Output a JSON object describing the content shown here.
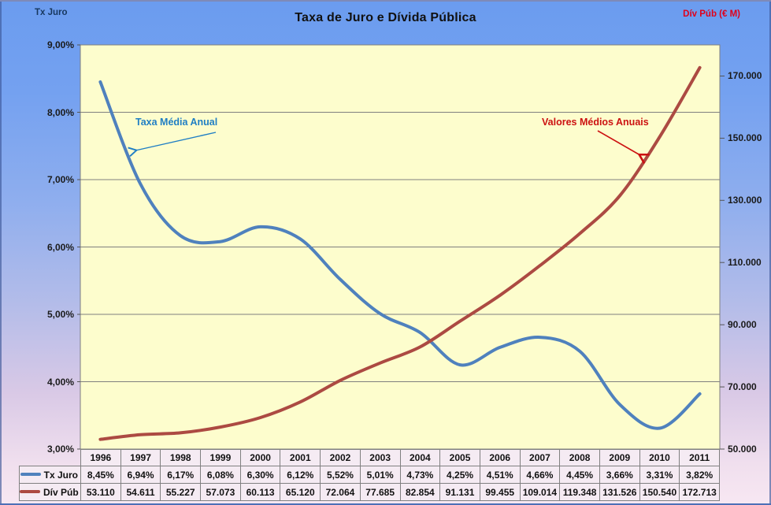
{
  "title": "Taxa de Juro e Dívida Pública",
  "left_axis": {
    "title": "Tx Juro",
    "title_color": "#17375E",
    "tick_labels": [
      "9,00%",
      "8,00%",
      "7,00%",
      "6,00%",
      "5,00%",
      "4,00%",
      "3,00%"
    ],
    "tick_values": [
      9,
      8,
      7,
      6,
      5,
      4,
      3
    ]
  },
  "right_axis": {
    "title": "Dív Púb (€ M)",
    "title_color": "#E0001A",
    "tick_labels": [
      "170.000",
      "150.000",
      "130.000",
      "110.000",
      "90.000",
      "70.000",
      "50.000"
    ],
    "tick_values": [
      170000,
      150000,
      130000,
      110000,
      90000,
      70000,
      50000
    ]
  },
  "annotations": {
    "tx_juro": {
      "text": "Taxa Média Anual",
      "color": "#1F7EC4"
    },
    "div_pub": {
      "text": "Valores Médios Anuais",
      "color": "#CC1111"
    }
  },
  "colors": {
    "plot_bg": "#FDFDCD",
    "gridline": "#7F7F7F",
    "table_border": "#808080",
    "table_cell_bg": "#F5EBF3"
  },
  "chart_data": {
    "type": "line",
    "title": "Taxa de Juro e Dívida Pública",
    "categories": [
      "1996",
      "1997",
      "1998",
      "1999",
      "2000",
      "2001",
      "2002",
      "2003",
      "2004",
      "2005",
      "2006",
      "2007",
      "2008",
      "2009",
      "2010",
      "2011"
    ],
    "series": [
      {
        "name": "Tx Juro",
        "axis": "left",
        "color": "#4F81BD",
        "smoothed": true,
        "values": [
          8.45,
          6.94,
          6.17,
          6.08,
          6.3,
          6.12,
          5.52,
          5.01,
          4.73,
          4.25,
          4.51,
          4.66,
          4.45,
          3.66,
          3.31,
          3.82
        ],
        "labels": [
          "8,45%",
          "6,94%",
          "6,17%",
          "6,08%",
          "6,30%",
          "6,12%",
          "5,52%",
          "5,01%",
          "4,73%",
          "4,25%",
          "4,51%",
          "4,66%",
          "4,45%",
          "3,66%",
          "3,31%",
          "3,82%"
        ]
      },
      {
        "name": "Dív Púb",
        "axis": "right",
        "color": "#AC4A42",
        "smoothed": true,
        "values": [
          53110,
          54611,
          55227,
          57073,
          60113,
          65120,
          72064,
          77685,
          82854,
          91131,
          99455,
          109014,
          119348,
          131526,
          150540,
          172713
        ],
        "labels": [
          "53.110",
          "54.611",
          "55.227",
          "57.073",
          "60.113",
          "65.120",
          "72.064",
          "77.685",
          "82.854",
          "91.131",
          "99.455",
          "109.014",
          "119.348",
          "131.526",
          "150.540",
          "172.713"
        ]
      }
    ],
    "left_ylabel": "Tx Juro",
    "right_ylabel": "Dív Púb (€ M)",
    "left_ylim": [
      3,
      9
    ],
    "right_ylim": [
      50000,
      180000
    ],
    "grid": true,
    "legend_position": "data-table-left"
  }
}
